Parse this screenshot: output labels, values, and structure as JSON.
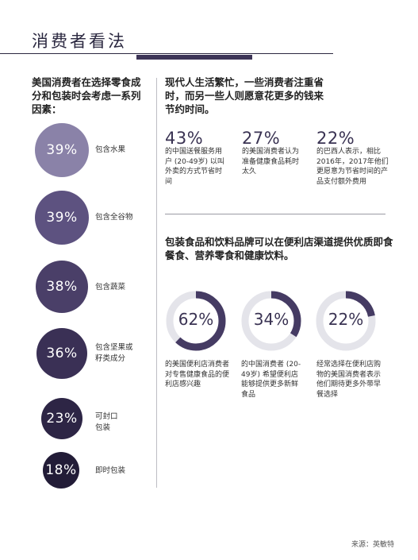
{
  "title": "消费者看法",
  "left": {
    "intro": "美国消费者在选择零食成分和包装时会考虑一系列因素：",
    "factors": [
      {
        "percent": "39%",
        "label": "包含水果",
        "color": "#8a82a8"
      },
      {
        "percent": "39%",
        "label": "包含全谷物",
        "color": "#5d5280"
      },
      {
        "percent": "38%",
        "label": "包含蔬菜",
        "color": "#4a3f68"
      },
      {
        "percent": "36%",
        "label": "包含坚果或籽类成分",
        "color": "#3a3055"
      },
      {
        "percent": "23%",
        "label": "可封口包装",
        "color": "#2d2545"
      },
      {
        "percent": "18%",
        "label": "即时包装",
        "color": "#221c37"
      }
    ]
  },
  "right": {
    "intro1": "现代人生活繁忙，一些消费者注重省时，而另一些人则愿意花更多的钱来节约时间。",
    "stats": [
      {
        "value": "43%",
        "text": "的中国送餐服务用户 (20-49岁) 以叫外卖的方式节省时间"
      },
      {
        "value": "27%",
        "text": "的美国消费者认为准备健康食品耗时太久"
      },
      {
        "value": "22%",
        "text": "的巴西人表示，相比2016年，2017年他们更愿意为节省时间的产品支付额外费用"
      }
    ],
    "intro2": "包装食品和饮料品牌可以在便利店渠道提供优质即食餐食、营养零食和健康饮料。",
    "donuts": [
      {
        "value": "62%",
        "fraction": 0.62,
        "text": "的美国便利店消费者对专售健康食品的便利店感兴趣"
      },
      {
        "value": "34%",
        "fraction": 0.34,
        "text": "的中国消费者 (20-49岁) 希望便利店能够提供更多新鲜食品"
      },
      {
        "value": "22%",
        "fraction": 0.22,
        "text": "经常选择在便利店购物的美国消费者表示他们期待更多外带早餐选择"
      }
    ]
  },
  "source": "来源：英敏特",
  "colors": {
    "accent": "#3d3557",
    "ring_bg": "#e4e4ea",
    "ring_fg": "#453b63"
  }
}
